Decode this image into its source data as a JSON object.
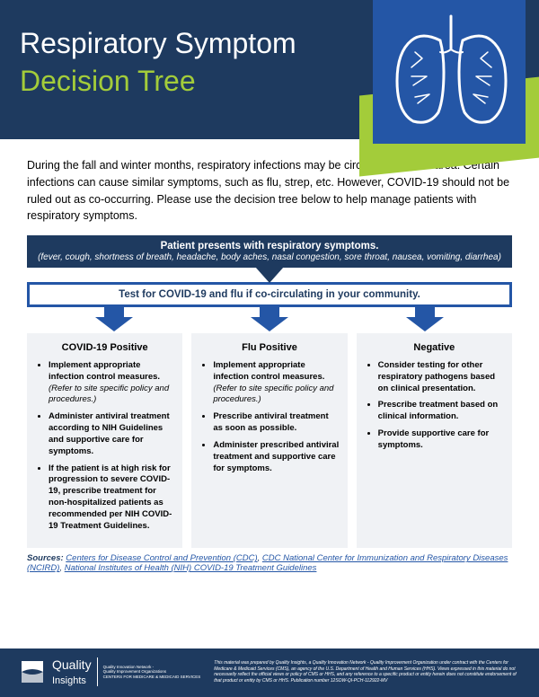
{
  "header": {
    "title_line1": "Respiratory Symptom",
    "title_line2": "Decision Tree",
    "bg_color": "#1e3a5f",
    "accent_color": "#a3cc3a",
    "panel_color": "#2456a6"
  },
  "intro": "During the fall and winter months, respiratory infections may be circulating in your area. Certain infections can cause similar symptoms, such as flu, strep, etc. However, COVID-19 should not be ruled out as co-occurring. Please use the decision tree below to help manage patients with respiratory symptoms.",
  "flow": {
    "step1_main": "Patient presents with respiratory symptoms.",
    "step1_sub": "(fever, cough, shortness of breath, headache, body aches, nasal congestion, sore throat, nausea, vomiting, diarrhea)",
    "step2": "Test for COVID-19 and flu if co-circulating in your community.",
    "arrow_color": "#2456a6"
  },
  "columns": [
    {
      "title": "COVID-19 Positive",
      "items": [
        {
          "bold": "Implement appropriate infection control measures.",
          "italic": " (Refer to site specific policy and procedures.)"
        },
        {
          "bold": "Administer antiviral treatment according to NIH Guidelines and supportive care for symptoms."
        },
        {
          "bold": "If the patient is at high risk for progression to severe COVID-19, prescribe treatment for non-hospitalized patients as recommended per NIH COVID-19 Treatment Guidelines."
        }
      ]
    },
    {
      "title": "Flu Positive",
      "items": [
        {
          "bold": "Implement appropriate infection control measures.",
          "italic": " (Refer to site specific policy and procedures.)"
        },
        {
          "bold": "Prescribe antiviral treatment as soon as possible."
        },
        {
          "bold": "Administer prescribed antiviral treatment and supportive care for symptoms."
        }
      ]
    },
    {
      "title": "Negative",
      "items": [
        {
          "bold": "Consider testing for other respiratory pathogens based on clinical presentation."
        },
        {
          "bold": "Prescribe treatment based on clinical information."
        },
        {
          "bold": "Provide supportive care for symptoms."
        }
      ]
    }
  ],
  "sources": {
    "label": "Sources:",
    "links": [
      "Centers for Disease Control and Prevention (CDC)",
      "CDC National Center for Immunization and Respiratory Diseases (NCIRD)",
      "National Institutes of Health (NIH) COVID-19 Treatment Guidelines"
    ]
  },
  "footer": {
    "logo_name": "Quality Insights",
    "logo_sub": "Quality Innovation Network -\nQuality Improvement Organizations\nCENTERS FOR MEDICARE & MEDICAID SERVICES",
    "disclaimer": "This material was prepared by Quality Insights, a Quality Innovation Network - Quality Improvement Organization under contract with the Centers for Medicare & Medicaid Services (CMS), an agency of the U.S. Department of Health and Human Services (HHS). Views expressed in this material do not necessarily reflect the official views or policy of CMS or HHS, and any reference to a specific product or entity herein does not constitute endorsement of that product or entity by CMS or HHS. Publication number 12SOW-QI-PCH-112922-MV"
  }
}
